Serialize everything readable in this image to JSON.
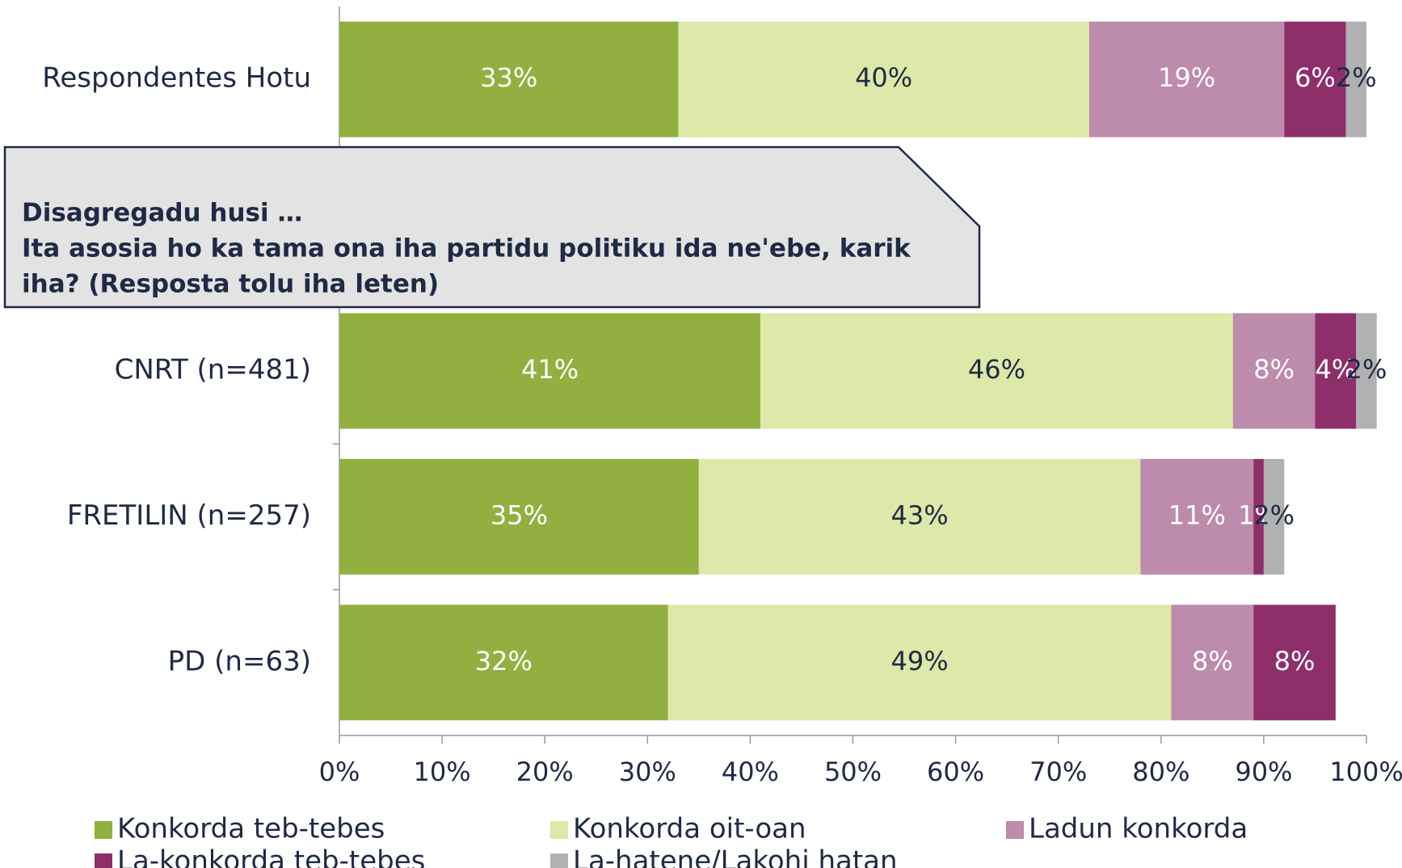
{
  "chart_data": {
    "type": "stacked_barh",
    "categories": [
      "Respondentes Hotu",
      null,
      "CNRT (n=481)",
      "FRETILIN (n=257)",
      "PD (n=63)"
    ],
    "series": [
      {
        "name": "Konkorda teb-tebes",
        "color": "#92b040",
        "label_color": "#ffffff",
        "values": [
          33,
          null,
          41,
          35,
          32
        ],
        "value_labels": [
          "33%",
          null,
          "41%",
          "35%",
          "32%"
        ]
      },
      {
        "name": "Konkorda oit-oan",
        "color": "#dde8a9",
        "label_color": "#1f2a44",
        "values": [
          40,
          null,
          46,
          43,
          49
        ],
        "value_labels": [
          "40%",
          null,
          "46%",
          "43%",
          "49%"
        ]
      },
      {
        "name": "Ladun konkorda",
        "color": "#bd8bab",
        "label_color": "#ffffff",
        "values": [
          19,
          null,
          8,
          11,
          8
        ],
        "value_labels": [
          "19%",
          null,
          "8%",
          "11%",
          "8%"
        ]
      },
      {
        "name": "La-konkorda teb-tebes",
        "color": "#8e2f6a",
        "label_color": "#ffffff",
        "values": [
          6,
          null,
          4,
          1,
          8
        ],
        "value_labels": [
          "6%",
          null,
          "4%",
          "1%",
          "8%"
        ]
      },
      {
        "name": "La-hatene/Lakohi hatan",
        "color": "#b1b1b3",
        "label_color": "#1f2a44",
        "values": [
          2,
          null,
          2,
          2,
          null
        ],
        "value_labels": [
          "2%",
          null,
          "2%",
          "2%",
          null
        ]
      }
    ],
    "xlim": [
      0,
      100
    ],
    "xticks": [
      {
        "value": 0,
        "label": "0%"
      },
      {
        "value": 10,
        "label": "10%"
      },
      {
        "value": 20,
        "label": "20%"
      },
      {
        "value": 30,
        "label": "30%"
      },
      {
        "value": 40,
        "label": "40%"
      },
      {
        "value": 50,
        "label": "50%"
      },
      {
        "value": 60,
        "label": "60%"
      },
      {
        "value": 70,
        "label": "70%"
      },
      {
        "value": 80,
        "label": "80%"
      },
      {
        "value": 90,
        "label": "90%"
      },
      {
        "value": 100,
        "label": "100%"
      }
    ],
    "annotation": [
      "Disagregadu husi …",
      "Ita asosia ho ka tama ona iha partidu politiku ida ne'ebe, karik",
      "iha? (Resposta tolu iha leten)"
    ]
  }
}
